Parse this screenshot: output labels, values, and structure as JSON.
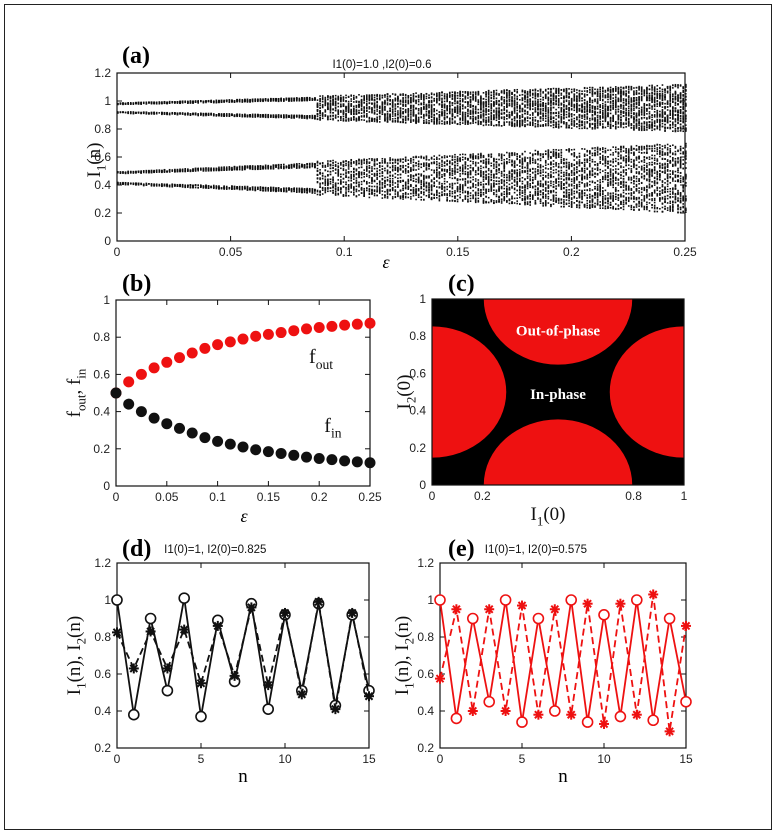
{
  "chart_data": [
    {
      "id": "a",
      "type": "scatter",
      "panel_label": "(a)",
      "subtitle": "I1(0)=1.0 ,I2(0)=0.6",
      "xlabel": "ε",
      "ylabel": "I1(n)",
      "xlim": [
        0,
        0.25
      ],
      "ylim": [
        0,
        1.2
      ],
      "xticks": [
        "0",
        "0.05",
        "0.1",
        "0.15",
        "0.2",
        "0.25"
      ],
      "yticks": [
        "0",
        "0.2",
        "0.4",
        "0.6",
        "0.8",
        "1",
        "1.2"
      ],
      "bands": [
        {
          "center": 0.955,
          "halfwidth_at_0": 0.04,
          "halfwidth_at_end": 0.17
        },
        {
          "center": 0.455,
          "halfwidth_at_0": 0.05,
          "halfwidth_at_end": 0.25
        }
      ],
      "color": "#111111"
    },
    {
      "id": "b",
      "type": "line",
      "panel_label": "(b)",
      "xlabel": "ε",
      "ylabel": "f_out, f_in",
      "xlim": [
        0,
        0.25
      ],
      "ylim": [
        0,
        1
      ],
      "xticks": [
        "0",
        "0.05",
        "0.1",
        "0.15",
        "0.2",
        "0.25"
      ],
      "yticks": [
        "0",
        "0.2",
        "0.4",
        "0.6",
        "0.8",
        "1"
      ],
      "x": [
        0,
        0.0125,
        0.025,
        0.0375,
        0.05,
        0.0625,
        0.075,
        0.0875,
        0.1,
        0.1125,
        0.125,
        0.1375,
        0.15,
        0.1625,
        0.175,
        0.1875,
        0.2,
        0.2125,
        0.225,
        0.2375,
        0.25
      ],
      "series": [
        {
          "name": "f_out",
          "color": "#ee1111",
          "values": [
            0.5,
            0.56,
            0.6,
            0.635,
            0.665,
            0.69,
            0.715,
            0.74,
            0.76,
            0.775,
            0.79,
            0.805,
            0.815,
            0.825,
            0.835,
            0.845,
            0.852,
            0.858,
            0.865,
            0.87,
            0.875
          ]
        },
        {
          "name": "f_in",
          "color": "#111111",
          "values": [
            0.5,
            0.44,
            0.4,
            0.365,
            0.335,
            0.31,
            0.285,
            0.26,
            0.24,
            0.225,
            0.21,
            0.195,
            0.185,
            0.175,
            0.165,
            0.155,
            0.148,
            0.142,
            0.135,
            0.13,
            0.125
          ]
        }
      ],
      "annotations": [
        {
          "main": "f",
          "sub": "out",
          "x": 0.19,
          "y": 0.66
        },
        {
          "main": "f",
          "sub": "in",
          "x": 0.205,
          "y": 0.29
        }
      ]
    },
    {
      "id": "c",
      "type": "heatmap",
      "panel_label": "(c)",
      "xlabel": "I1(0)",
      "ylabel": "I2(0)",
      "xlim": [
        0,
        1
      ],
      "ylim": [
        0,
        1
      ],
      "xticks": [
        "0",
        "0.2",
        "0.8",
        "1"
      ],
      "yticks": [
        "0",
        "0.2",
        "0.4",
        "0.6",
        "0.8",
        "1"
      ],
      "regions": [
        {
          "label": "Out-of-phase",
          "color": "#ee1111"
        },
        {
          "label": "In-phase",
          "color": "#000000"
        }
      ],
      "out_of_phase_discs": [
        {
          "cx": 0.5,
          "cy": 1.0,
          "r": 0.26
        },
        {
          "cx": 0.5,
          "cy": 0.0,
          "r": 0.26
        },
        {
          "cx": 0.0,
          "cy": 0.5,
          "r": 0.26
        },
        {
          "cx": 1.0,
          "cy": 0.5,
          "r": 0.26
        }
      ],
      "region_label_positions": [
        {
          "x": 0.5,
          "y": 0.83
        },
        {
          "x": 0.5,
          "y": 0.49
        }
      ]
    },
    {
      "id": "d",
      "type": "line",
      "panel_label": "(d)",
      "subtitle": "I1(0)=1, I2(0)=0.825",
      "xlabel": "n",
      "ylabel": "I1(n), I2(n)",
      "xlim": [
        0,
        15
      ],
      "ylim": [
        0.2,
        1.2
      ],
      "xticks": [
        "0",
        "5",
        "10",
        "15"
      ],
      "yticks": [
        "0.2",
        "0.4",
        "0.6",
        "0.8",
        "1",
        "1.2"
      ],
      "x": [
        0,
        1,
        2,
        3,
        4,
        5,
        6,
        7,
        8,
        9,
        10,
        11,
        12,
        13,
        14,
        15
      ],
      "series": [
        {
          "name": "I1(n)",
          "marker": "circle",
          "dash": "solid",
          "color": "#111111",
          "values": [
            1.0,
            0.38,
            0.9,
            0.51,
            1.01,
            0.37,
            0.89,
            0.56,
            0.98,
            0.41,
            0.92,
            0.51,
            0.98,
            0.43,
            0.92,
            0.51
          ]
        },
        {
          "name": "I2(n)",
          "marker": "star",
          "dash": "dashed",
          "color": "#111111",
          "values": [
            0.825,
            0.63,
            0.83,
            0.63,
            0.84,
            0.55,
            0.86,
            0.59,
            0.96,
            0.54,
            0.93,
            0.49,
            0.99,
            0.41,
            0.93,
            0.48
          ]
        }
      ]
    },
    {
      "id": "e",
      "type": "line",
      "panel_label": "(e)",
      "subtitle": "I1(0)=1, I2(0)=0.575",
      "xlabel": "n",
      "ylabel": "I1(n), I2(n)",
      "xlim": [
        0,
        15
      ],
      "ylim": [
        0.2,
        1.2
      ],
      "xticks": [
        "0",
        "5",
        "10",
        "15"
      ],
      "yticks": [
        "0.2",
        "0.4",
        "0.6",
        "0.8",
        "1",
        "1.2"
      ],
      "x": [
        0,
        1,
        2,
        3,
        4,
        5,
        6,
        7,
        8,
        9,
        10,
        11,
        12,
        13,
        14,
        15
      ],
      "series": [
        {
          "name": "I1(n)",
          "marker": "circle",
          "dash": "solid",
          "color": "#ee1111",
          "values": [
            1.0,
            0.36,
            0.9,
            0.45,
            1.0,
            0.34,
            0.9,
            0.4,
            1.0,
            0.34,
            0.92,
            0.37,
            1.0,
            0.35,
            0.9,
            0.45
          ]
        },
        {
          "name": "I2(n)",
          "marker": "star",
          "dash": "dashed",
          "color": "#ee1111",
          "values": [
            0.575,
            0.95,
            0.4,
            0.95,
            0.4,
            0.97,
            0.38,
            0.95,
            0.38,
            0.98,
            0.33,
            0.98,
            0.38,
            1.03,
            0.29,
            0.86
          ]
        }
      ]
    }
  ]
}
